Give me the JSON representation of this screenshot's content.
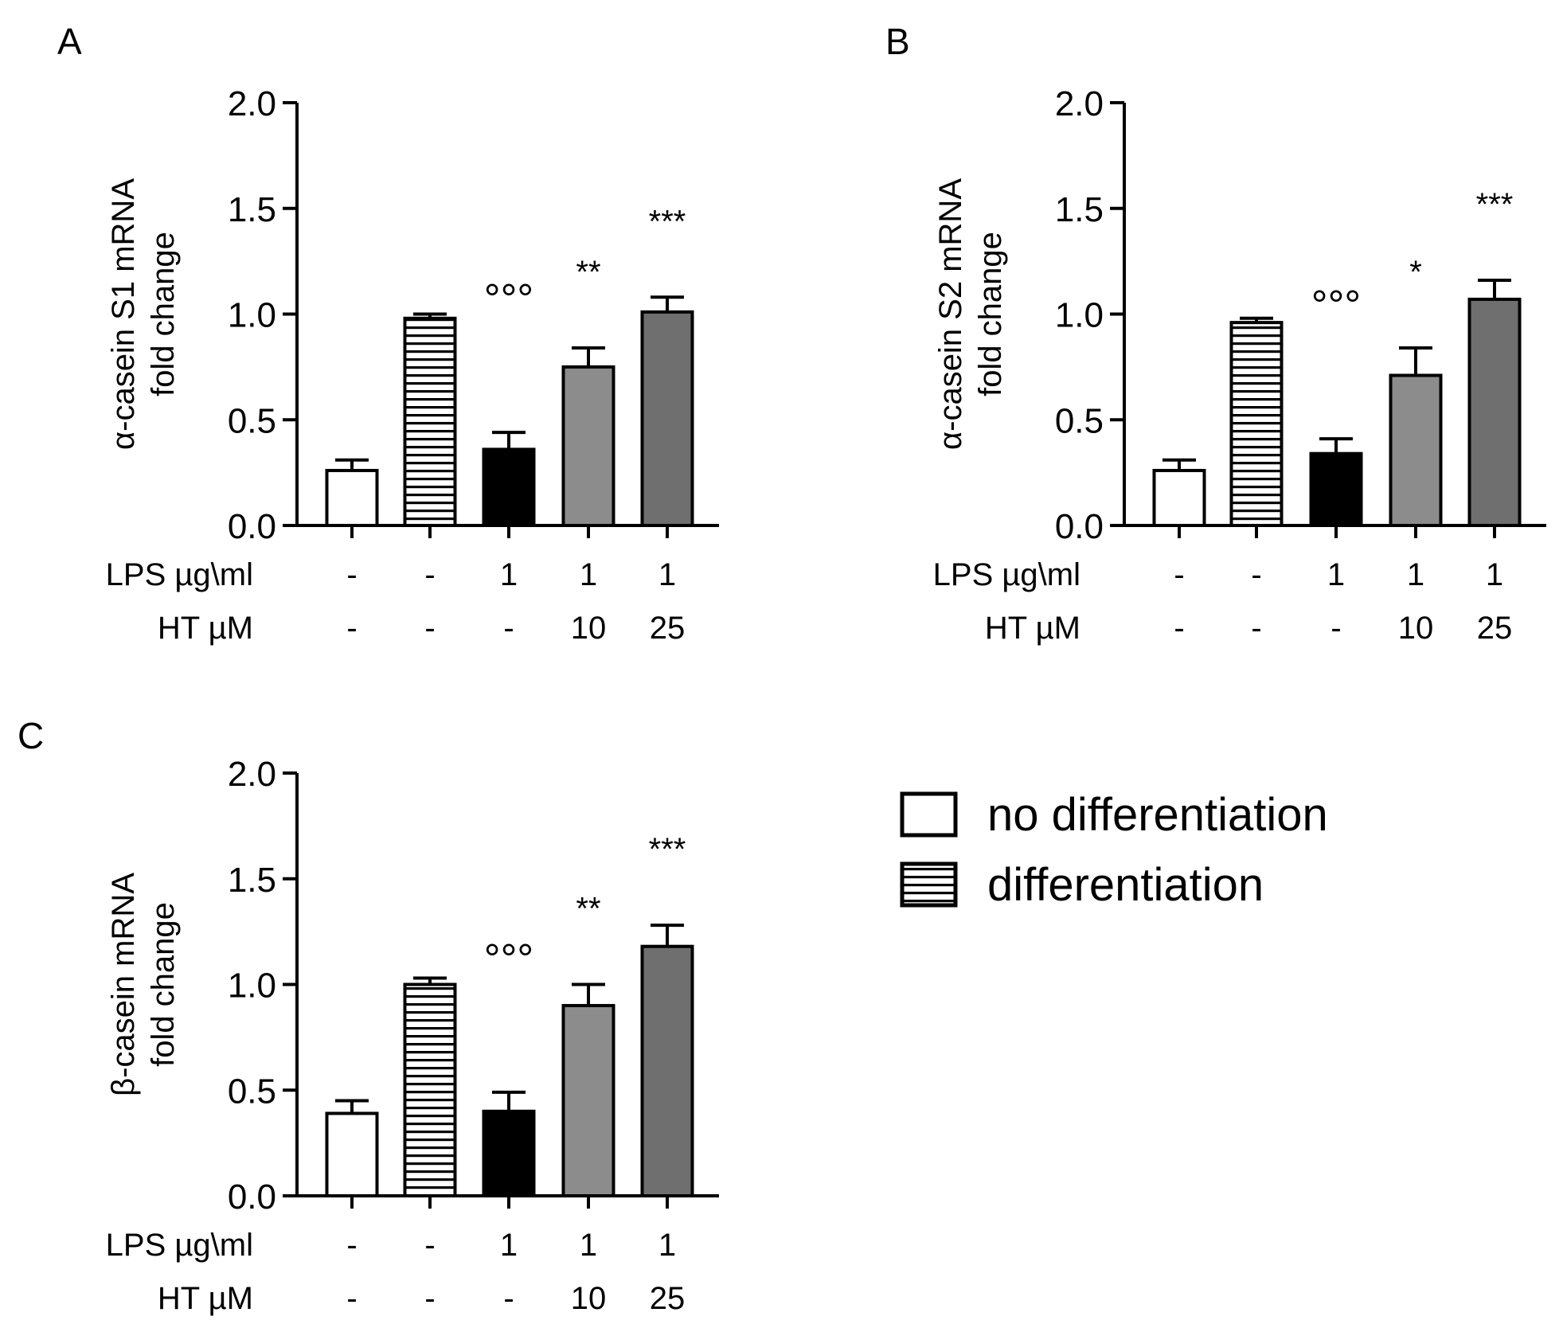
{
  "figure": {
    "legend": [
      {
        "label": "no differentiation",
        "fill": "#ffffff",
        "pattern": "none"
      },
      {
        "label": "differentiation",
        "fill": "#ffffff",
        "pattern": "horizontal-stripes"
      }
    ]
  },
  "chart_data": [
    {
      "type": "bar",
      "panel": "A",
      "ylabel_line1": "α-casein S1 mRNA",
      "ylabel_line2": "fold change",
      "ylim": [
        0,
        2.0
      ],
      "yticks": [
        "0.0",
        "0.5",
        "1.0",
        "1.5",
        "2.0"
      ],
      "rows": [
        {
          "label": "LPS µg\\ml",
          "values": [
            "-",
            "-",
            "1",
            "1",
            "1"
          ]
        },
        {
          "label": "HT µM",
          "values": [
            "-",
            "-",
            "-",
            "10",
            "25"
          ]
        }
      ],
      "values": [
        0.26,
        0.98,
        0.36,
        0.75,
        1.01
      ],
      "errors": [
        0.05,
        0.02,
        0.08,
        0.09,
        0.07
      ],
      "annotations": [
        "",
        "",
        "°°°",
        "**",
        "***"
      ],
      "colors": [
        "#ffffff",
        "#ffffff",
        "#000000",
        "#8c8c8c",
        "#6f6f6f"
      ],
      "patterns": [
        "none",
        "stripes",
        "none",
        "none",
        "none"
      ]
    },
    {
      "type": "bar",
      "panel": "B",
      "ylabel_line1": "α-casein S2 mRNA",
      "ylabel_line2": "fold change",
      "ylim": [
        0,
        2.0
      ],
      "yticks": [
        "0.0",
        "0.5",
        "1.0",
        "1.5",
        "2.0"
      ],
      "rows": [
        {
          "label": "LPS µg\\ml",
          "values": [
            "-",
            "-",
            "1",
            "1",
            "1"
          ]
        },
        {
          "label": "HT µM",
          "values": [
            "-",
            "-",
            "-",
            "10",
            "25"
          ]
        }
      ],
      "values": [
        0.26,
        0.96,
        0.34,
        0.71,
        1.07
      ],
      "errors": [
        0.05,
        0.02,
        0.07,
        0.13,
        0.09
      ],
      "annotations": [
        "",
        "",
        "°°°",
        "*",
        "***"
      ],
      "colors": [
        "#ffffff",
        "#ffffff",
        "#000000",
        "#8c8c8c",
        "#6f6f6f"
      ],
      "patterns": [
        "none",
        "stripes",
        "none",
        "none",
        "none"
      ]
    },
    {
      "type": "bar",
      "panel": "C",
      "ylabel_line1": "β-casein mRNA",
      "ylabel_line2": "fold change",
      "ylim": [
        0,
        2.0
      ],
      "yticks": [
        "0.0",
        "0.5",
        "1.0",
        "1.5",
        "2.0"
      ],
      "rows": [
        {
          "label": "LPS µg\\ml",
          "values": [
            "-",
            "-",
            "1",
            "1",
            "1"
          ]
        },
        {
          "label": "HT µM",
          "values": [
            "-",
            "-",
            "-",
            "10",
            "25"
          ]
        }
      ],
      "values": [
        0.39,
        1.0,
        0.4,
        0.9,
        1.18
      ],
      "errors": [
        0.06,
        0.03,
        0.09,
        0.1,
        0.1
      ],
      "annotations": [
        "",
        "",
        "°°°",
        "**",
        "***"
      ],
      "colors": [
        "#ffffff",
        "#ffffff",
        "#000000",
        "#8c8c8c",
        "#6f6f6f"
      ],
      "patterns": [
        "none",
        "stripes",
        "none",
        "none",
        "none"
      ]
    }
  ]
}
